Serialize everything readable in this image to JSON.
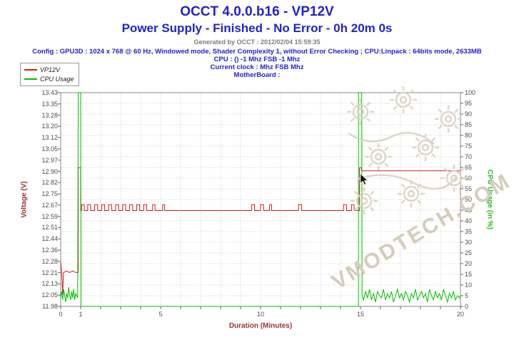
{
  "header": {
    "title": "OCCT 4.0.0.b16 - VP12V",
    "subtitle": "Power Supply - Finished - No Error - 0h 20m 0s",
    "generated_by": "Generated by OCCT : 2012/02/04 15:59:35",
    "config_lines": [
      "Config : GPU3D : 1024 x 768 @ 60 Hz, Windowed mode, Shader Complexity 1, without Error Checking ; CPU:Linpack : 64bits mode, 2633MB",
      "CPU :  () -1 Mhz FSB -1 Mhz",
      "Current clock :  Mhz FSB  Mhz",
      "MotherBoard : "
    ]
  },
  "watermark": {
    "text": "VMODTECH.COM"
  },
  "colors": {
    "accent_blue": "#2222cc",
    "maroon_axis": "#993333",
    "green_axis": "#2db82d",
    "grid": "#cccccc",
    "watermark": "#d6ccbc"
  },
  "chart_data": {
    "type": "line",
    "title": "OCCT 4.0.0.b16 - VP12V",
    "xlabel": "Duration (Minutes)",
    "ylabel_left": "Voltage (V)",
    "ylabel_right": "CPU Usage (in %)",
    "xlim": [
      0,
      20
    ],
    "x_minor_step": 1,
    "x_ticks": [
      0,
      1,
      5,
      10,
      15,
      20
    ],
    "grid": true,
    "legend_position": "top-left",
    "left_axis": {
      "min": 11.98,
      "max": 13.43,
      "ticks": [
        "13.43",
        "13.35",
        "13.28",
        "13.20",
        "13.12",
        "13.05",
        "12.97",
        "12.90",
        "12.82",
        "12.75",
        "12.67",
        "12.59",
        "12.51",
        "12.44",
        "12.36",
        "12.28",
        "12.21",
        "12.13",
        "12.05",
        "11.98"
      ]
    },
    "right_axis": {
      "min": 0,
      "max": 100,
      "ticks": [
        "100",
        "95",
        "90",
        "85",
        "80",
        "75",
        "70",
        "65",
        "60",
        "55",
        "50",
        "45",
        "40",
        "35",
        "30",
        "25",
        "20",
        "15",
        "10",
        "5",
        "0"
      ]
    },
    "series": [
      {
        "name": "VP12V",
        "color": "#cc2020",
        "axis": "left",
        "points": [
          [
            0,
            12.28
          ],
          [
            0.05,
            12.21
          ],
          [
            0.1,
            12.06
          ],
          [
            0.14,
            12.21
          ],
          [
            0.3,
            12.22
          ],
          [
            0.45,
            12.21
          ],
          [
            0.6,
            12.22
          ],
          [
            0.75,
            12.21
          ],
          [
            0.88,
            12.21
          ],
          [
            0.88,
            12.92
          ],
          [
            1,
            12.92
          ],
          [
            1,
            12.63
          ],
          [
            1.05,
            12.63
          ],
          [
            1.05,
            12.67
          ],
          [
            1.18,
            12.67
          ],
          [
            1.18,
            12.63
          ],
          [
            1.35,
            12.63
          ],
          [
            1.35,
            12.67
          ],
          [
            1.5,
            12.67
          ],
          [
            1.5,
            12.63
          ],
          [
            1.7,
            12.63
          ],
          [
            1.7,
            12.67
          ],
          [
            1.85,
            12.67
          ],
          [
            1.85,
            12.63
          ],
          [
            2.05,
            12.63
          ],
          [
            2.05,
            12.67
          ],
          [
            2.2,
            12.67
          ],
          [
            2.2,
            12.63
          ],
          [
            2.4,
            12.63
          ],
          [
            2.4,
            12.67
          ],
          [
            2.55,
            12.67
          ],
          [
            2.55,
            12.63
          ],
          [
            2.75,
            12.63
          ],
          [
            2.75,
            12.67
          ],
          [
            2.9,
            12.67
          ],
          [
            2.9,
            12.63
          ],
          [
            3.1,
            12.63
          ],
          [
            3.1,
            12.67
          ],
          [
            3.25,
            12.67
          ],
          [
            3.25,
            12.63
          ],
          [
            3.45,
            12.63
          ],
          [
            3.45,
            12.67
          ],
          [
            3.6,
            12.67
          ],
          [
            3.6,
            12.63
          ],
          [
            3.8,
            12.63
          ],
          [
            3.8,
            12.67
          ],
          [
            3.95,
            12.67
          ],
          [
            3.95,
            12.63
          ],
          [
            4.15,
            12.63
          ],
          [
            4.15,
            12.67
          ],
          [
            4.3,
            12.67
          ],
          [
            4.3,
            12.63
          ],
          [
            4.6,
            12.63
          ],
          [
            4.6,
            12.67
          ],
          [
            4.72,
            12.67
          ],
          [
            4.72,
            12.63
          ],
          [
            5.1,
            12.63
          ],
          [
            5.1,
            12.67
          ],
          [
            5.2,
            12.67
          ],
          [
            5.2,
            12.63
          ],
          [
            9.55,
            12.63
          ],
          [
            9.55,
            12.67
          ],
          [
            9.7,
            12.67
          ],
          [
            9.7,
            12.63
          ],
          [
            10,
            12.63
          ],
          [
            10,
            12.67
          ],
          [
            10.15,
            12.67
          ],
          [
            10.15,
            12.63
          ],
          [
            10.45,
            12.63
          ],
          [
            10.45,
            12.67
          ],
          [
            10.55,
            12.67
          ],
          [
            10.55,
            12.63
          ],
          [
            11.9,
            12.63
          ],
          [
            11.9,
            12.67
          ],
          [
            12.05,
            12.67
          ],
          [
            12.05,
            12.63
          ],
          [
            14.15,
            12.63
          ],
          [
            14.15,
            12.67
          ],
          [
            14.3,
            12.67
          ],
          [
            14.3,
            12.63
          ],
          [
            14.55,
            12.63
          ],
          [
            14.55,
            12.67
          ],
          [
            14.68,
            12.67
          ],
          [
            14.68,
            12.63
          ],
          [
            14.95,
            12.63
          ],
          [
            14.95,
            12.92
          ],
          [
            15.05,
            12.92
          ],
          [
            15.05,
            12.9
          ],
          [
            20,
            12.9
          ]
        ]
      },
      {
        "name": "CPU Usage",
        "color": "#00bf00",
        "axis": "right",
        "points": [
          [
            0,
            4
          ],
          [
            0.05,
            7
          ],
          [
            0.1,
            3
          ],
          [
            0.15,
            8
          ],
          [
            0.2,
            5
          ],
          [
            0.25,
            2
          ],
          [
            0.3,
            6
          ],
          [
            0.35,
            4
          ],
          [
            0.4,
            9
          ],
          [
            0.45,
            5
          ],
          [
            0.5,
            3
          ],
          [
            0.55,
            7
          ],
          [
            0.6,
            4
          ],
          [
            0.65,
            8
          ],
          [
            0.7,
            3
          ],
          [
            0.75,
            6
          ],
          [
            0.8,
            5
          ],
          [
            0.85,
            4
          ],
          [
            0.88,
            100
          ],
          [
            1,
            100
          ],
          [
            1.02,
            0
          ],
          [
            14.9,
            0
          ],
          [
            14.9,
            100
          ],
          [
            15.06,
            100
          ],
          [
            15.08,
            5
          ],
          [
            15.15,
            3
          ],
          [
            15.25,
            7
          ],
          [
            15.35,
            4
          ],
          [
            15.45,
            8
          ],
          [
            15.55,
            3
          ],
          [
            15.65,
            6
          ],
          [
            15.75,
            2
          ],
          [
            15.85,
            7
          ],
          [
            15.95,
            5
          ],
          [
            16.05,
            4
          ],
          [
            16.15,
            8
          ],
          [
            16.25,
            3
          ],
          [
            16.35,
            6
          ],
          [
            16.45,
            4
          ],
          [
            16.55,
            7
          ],
          [
            16.65,
            2
          ],
          [
            16.75,
            5
          ],
          [
            16.85,
            8
          ],
          [
            16.95,
            4
          ],
          [
            17.05,
            6
          ],
          [
            17.15,
            3
          ],
          [
            17.25,
            7
          ],
          [
            17.35,
            5
          ],
          [
            17.45,
            2
          ],
          [
            17.55,
            6
          ],
          [
            17.65,
            4
          ],
          [
            17.75,
            8
          ],
          [
            17.85,
            3
          ],
          [
            17.95,
            5
          ],
          [
            18.05,
            7
          ],
          [
            18.15,
            4
          ],
          [
            18.25,
            6
          ],
          [
            18.35,
            2
          ],
          [
            18.45,
            8
          ],
          [
            18.55,
            5
          ],
          [
            18.65,
            3
          ],
          [
            18.75,
            7
          ],
          [
            18.85,
            4
          ],
          [
            18.95,
            6
          ],
          [
            19.05,
            3
          ],
          [
            19.15,
            8
          ],
          [
            19.25,
            5
          ],
          [
            19.35,
            2
          ],
          [
            19.45,
            6
          ],
          [
            19.55,
            4
          ],
          [
            19.65,
            7
          ],
          [
            19.75,
            3
          ],
          [
            19.85,
            5
          ],
          [
            19.95,
            4
          ],
          [
            20,
            5
          ]
        ]
      }
    ]
  }
}
